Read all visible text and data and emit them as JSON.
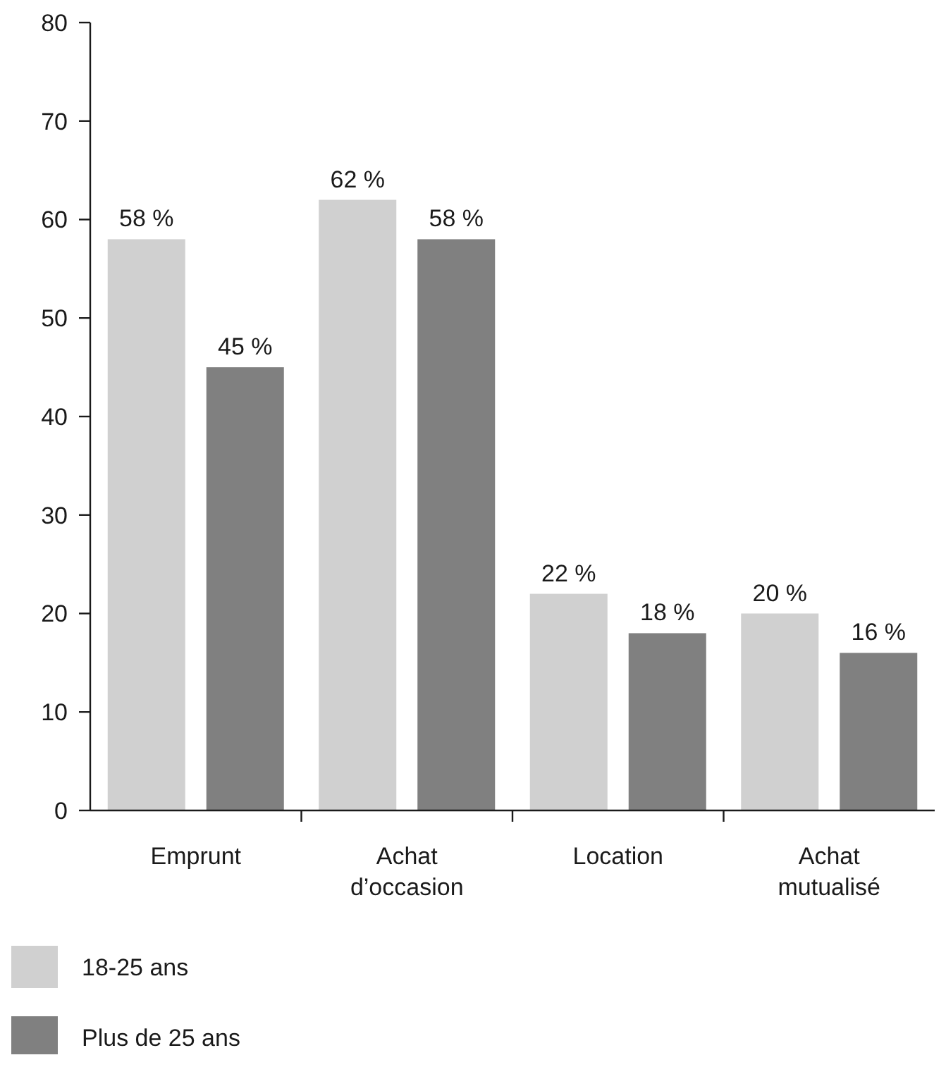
{
  "chart_data": {
    "type": "bar",
    "categories": [
      "Emprunt",
      "Achat d’occasion",
      "Location",
      "Achat mutualisé"
    ],
    "series": [
      {
        "name": "18-25 ans",
        "color": "#d0d0d0",
        "values": [
          58,
          62,
          22,
          20
        ],
        "value_labels": [
          "58 %",
          "62 %",
          "22 %",
          "20 %"
        ]
      },
      {
        "name": "Plus de 25 ans",
        "color": "#808080",
        "values": [
          45,
          58,
          18,
          16
        ],
        "value_labels": [
          "45 %",
          "58 %",
          "18 %",
          "16 %"
        ]
      }
    ],
    "ylim": [
      0,
      80
    ],
    "yticks": [
      0,
      10,
      20,
      30,
      40,
      50,
      60,
      70,
      80
    ],
    "grid": false,
    "legend": "bottom left"
  }
}
